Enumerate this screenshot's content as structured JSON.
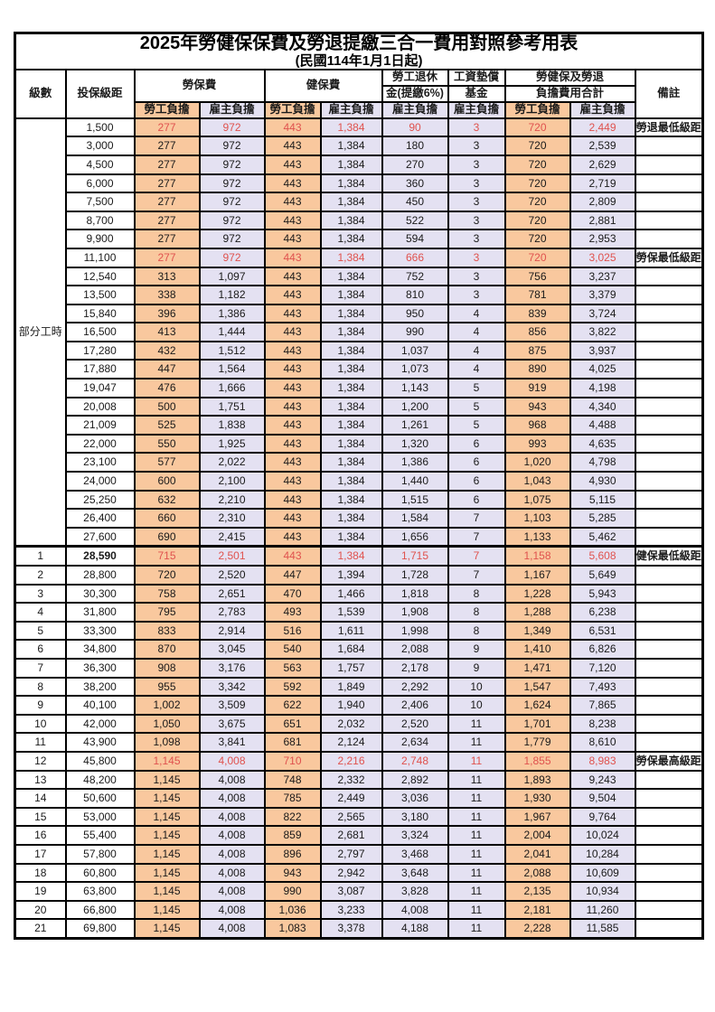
{
  "title": "2025年勞健保保費及勞退提繳三合一費用對照參考用表",
  "subtitle": "(民國114年1月1日起)",
  "header": {
    "level": "級數",
    "bracket": "投保級距",
    "labor_insurance": "勞保費",
    "health_insurance": "健保費",
    "pension_line1": "勞工退休",
    "pension_line2": "金(提繳6%)",
    "wage_fund_line1": "工資墊償",
    "wage_fund_line2": "基金",
    "total_line1": "勞健保及勞退",
    "total_line2": "負擔費用合計",
    "remark": "備註",
    "employee_label": "勞工負擔",
    "employer_label": "雇主負擔"
  },
  "colors": {
    "employee_column_bg": "#F9C89E",
    "employer_column_bg": "#E4E1F2",
    "highlight_red": "#E0524E",
    "border": "#000000"
  },
  "part_time_label": "部分工時",
  "part_time_rows": 23,
  "rows": [
    {
      "level": "",
      "bracket": "1,500",
      "labor_emp": "277",
      "labor_er": "972",
      "health_emp": "443",
      "health_er": "1,384",
      "pension_er": "90",
      "wagefund_er": "3",
      "total_emp": "720",
      "total_er": "2,449",
      "remark": "勞退最低級距",
      "hl": true
    },
    {
      "level": "",
      "bracket": "3,000",
      "labor_emp": "277",
      "labor_er": "972",
      "health_emp": "443",
      "health_er": "1,384",
      "pension_er": "180",
      "wagefund_er": "3",
      "total_emp": "720",
      "total_er": "2,539",
      "remark": ""
    },
    {
      "level": "",
      "bracket": "4,500",
      "labor_emp": "277",
      "labor_er": "972",
      "health_emp": "443",
      "health_er": "1,384",
      "pension_er": "270",
      "wagefund_er": "3",
      "total_emp": "720",
      "total_er": "2,629",
      "remark": ""
    },
    {
      "level": "",
      "bracket": "6,000",
      "labor_emp": "277",
      "labor_er": "972",
      "health_emp": "443",
      "health_er": "1,384",
      "pension_er": "360",
      "wagefund_er": "3",
      "total_emp": "720",
      "total_er": "2,719",
      "remark": ""
    },
    {
      "level": "",
      "bracket": "7,500",
      "labor_emp": "277",
      "labor_er": "972",
      "health_emp": "443",
      "health_er": "1,384",
      "pension_er": "450",
      "wagefund_er": "3",
      "total_emp": "720",
      "total_er": "2,809",
      "remark": ""
    },
    {
      "level": "",
      "bracket": "8,700",
      "labor_emp": "277",
      "labor_er": "972",
      "health_emp": "443",
      "health_er": "1,384",
      "pension_er": "522",
      "wagefund_er": "3",
      "total_emp": "720",
      "total_er": "2,881",
      "remark": ""
    },
    {
      "level": "",
      "bracket": "9,900",
      "labor_emp": "277",
      "labor_er": "972",
      "health_emp": "443",
      "health_er": "1,384",
      "pension_er": "594",
      "wagefund_er": "3",
      "total_emp": "720",
      "total_er": "2,953",
      "remark": ""
    },
    {
      "level": "",
      "bracket": "11,100",
      "labor_emp": "277",
      "labor_er": "972",
      "health_emp": "443",
      "health_er": "1,384",
      "pension_er": "666",
      "wagefund_er": "3",
      "total_emp": "720",
      "total_er": "3,025",
      "remark": "勞保最低級距",
      "hl": true
    },
    {
      "level": "",
      "bracket": "12,540",
      "labor_emp": "313",
      "labor_er": "1,097",
      "health_emp": "443",
      "health_er": "1,384",
      "pension_er": "752",
      "wagefund_er": "3",
      "total_emp": "756",
      "total_er": "3,237",
      "remark": ""
    },
    {
      "level": "",
      "bracket": "13,500",
      "labor_emp": "338",
      "labor_er": "1,182",
      "health_emp": "443",
      "health_er": "1,384",
      "pension_er": "810",
      "wagefund_er": "3",
      "total_emp": "781",
      "total_er": "3,379",
      "remark": ""
    },
    {
      "level": "",
      "bracket": "15,840",
      "labor_emp": "396",
      "labor_er": "1,386",
      "health_emp": "443",
      "health_er": "1,384",
      "pension_er": "950",
      "wagefund_er": "4",
      "total_emp": "839",
      "total_er": "3,724",
      "remark": ""
    },
    {
      "level": "",
      "bracket": "16,500",
      "labor_emp": "413",
      "labor_er": "1,444",
      "health_emp": "443",
      "health_er": "1,384",
      "pension_er": "990",
      "wagefund_er": "4",
      "total_emp": "856",
      "total_er": "3,822",
      "remark": ""
    },
    {
      "level": "",
      "bracket": "17,280",
      "labor_emp": "432",
      "labor_er": "1,512",
      "health_emp": "443",
      "health_er": "1,384",
      "pension_er": "1,037",
      "wagefund_er": "4",
      "total_emp": "875",
      "total_er": "3,937",
      "remark": ""
    },
    {
      "level": "",
      "bracket": "17,880",
      "labor_emp": "447",
      "labor_er": "1,564",
      "health_emp": "443",
      "health_er": "1,384",
      "pension_er": "1,073",
      "wagefund_er": "4",
      "total_emp": "890",
      "total_er": "4,025",
      "remark": ""
    },
    {
      "level": "",
      "bracket": "19,047",
      "labor_emp": "476",
      "labor_er": "1,666",
      "health_emp": "443",
      "health_er": "1,384",
      "pension_er": "1,143",
      "wagefund_er": "5",
      "total_emp": "919",
      "total_er": "4,198",
      "remark": ""
    },
    {
      "level": "",
      "bracket": "20,008",
      "labor_emp": "500",
      "labor_er": "1,751",
      "health_emp": "443",
      "health_er": "1,384",
      "pension_er": "1,200",
      "wagefund_er": "5",
      "total_emp": "943",
      "total_er": "4,340",
      "remark": ""
    },
    {
      "level": "",
      "bracket": "21,009",
      "labor_emp": "525",
      "labor_er": "1,838",
      "health_emp": "443",
      "health_er": "1,384",
      "pension_er": "1,261",
      "wagefund_er": "5",
      "total_emp": "968",
      "total_er": "4,488",
      "remark": ""
    },
    {
      "level": "",
      "bracket": "22,000",
      "labor_emp": "550",
      "labor_er": "1,925",
      "health_emp": "443",
      "health_er": "1,384",
      "pension_er": "1,320",
      "wagefund_er": "6",
      "total_emp": "993",
      "total_er": "4,635",
      "remark": ""
    },
    {
      "level": "",
      "bracket": "23,100",
      "labor_emp": "577",
      "labor_er": "2,022",
      "health_emp": "443",
      "health_er": "1,384",
      "pension_er": "1,386",
      "wagefund_er": "6",
      "total_emp": "1,020",
      "total_er": "4,798",
      "remark": ""
    },
    {
      "level": "",
      "bracket": "24,000",
      "labor_emp": "600",
      "labor_er": "2,100",
      "health_emp": "443",
      "health_er": "1,384",
      "pension_er": "1,440",
      "wagefund_er": "6",
      "total_emp": "1,043",
      "total_er": "4,930",
      "remark": ""
    },
    {
      "level": "",
      "bracket": "25,250",
      "labor_emp": "632",
      "labor_er": "2,210",
      "health_emp": "443",
      "health_er": "1,384",
      "pension_er": "1,515",
      "wagefund_er": "6",
      "total_emp": "1,075",
      "total_er": "5,115",
      "remark": ""
    },
    {
      "level": "",
      "bracket": "26,400",
      "labor_emp": "660",
      "labor_er": "2,310",
      "health_emp": "443",
      "health_er": "1,384",
      "pension_er": "1,584",
      "wagefund_er": "7",
      "total_emp": "1,103",
      "total_er": "5,285",
      "remark": ""
    },
    {
      "level": "",
      "bracket": "27,600",
      "labor_emp": "690",
      "labor_er": "2,415",
      "health_emp": "443",
      "health_er": "1,384",
      "pension_er": "1,656",
      "wagefund_er": "7",
      "total_emp": "1,133",
      "total_er": "5,462",
      "remark": ""
    },
    {
      "level": "1",
      "bracket": "28,590",
      "labor_emp": "715",
      "labor_er": "2,501",
      "health_emp": "443",
      "health_er": "1,384",
      "pension_er": "1,715",
      "wagefund_er": "7",
      "total_emp": "1,158",
      "total_er": "5,608",
      "remark": "健保最低級距",
      "hl": true,
      "emph": true,
      "sect": true
    },
    {
      "level": "2",
      "bracket": "28,800",
      "labor_emp": "720",
      "labor_er": "2,520",
      "health_emp": "447",
      "health_er": "1,394",
      "pension_er": "1,728",
      "wagefund_er": "7",
      "total_emp": "1,167",
      "total_er": "5,649",
      "remark": ""
    },
    {
      "level": "3",
      "bracket": "30,300",
      "labor_emp": "758",
      "labor_er": "2,651",
      "health_emp": "470",
      "health_er": "1,466",
      "pension_er": "1,818",
      "wagefund_er": "8",
      "total_emp": "1,228",
      "total_er": "5,943",
      "remark": ""
    },
    {
      "level": "4",
      "bracket": "31,800",
      "labor_emp": "795",
      "labor_er": "2,783",
      "health_emp": "493",
      "health_er": "1,539",
      "pension_er": "1,908",
      "wagefund_er": "8",
      "total_emp": "1,288",
      "total_er": "6,238",
      "remark": ""
    },
    {
      "level": "5",
      "bracket": "33,300",
      "labor_emp": "833",
      "labor_er": "2,914",
      "health_emp": "516",
      "health_er": "1,611",
      "pension_er": "1,998",
      "wagefund_er": "8",
      "total_emp": "1,349",
      "total_er": "6,531",
      "remark": ""
    },
    {
      "level": "6",
      "bracket": "34,800",
      "labor_emp": "870",
      "labor_er": "3,045",
      "health_emp": "540",
      "health_er": "1,684",
      "pension_er": "2,088",
      "wagefund_er": "9",
      "total_emp": "1,410",
      "total_er": "6,826",
      "remark": ""
    },
    {
      "level": "7",
      "bracket": "36,300",
      "labor_emp": "908",
      "labor_er": "3,176",
      "health_emp": "563",
      "health_er": "1,757",
      "pension_er": "2,178",
      "wagefund_er": "9",
      "total_emp": "1,471",
      "total_er": "7,120",
      "remark": ""
    },
    {
      "level": "8",
      "bracket": "38,200",
      "labor_emp": "955",
      "labor_er": "3,342",
      "health_emp": "592",
      "health_er": "1,849",
      "pension_er": "2,292",
      "wagefund_er": "10",
      "total_emp": "1,547",
      "total_er": "7,493",
      "remark": ""
    },
    {
      "level": "9",
      "bracket": "40,100",
      "labor_emp": "1,002",
      "labor_er": "3,509",
      "health_emp": "622",
      "health_er": "1,940",
      "pension_er": "2,406",
      "wagefund_er": "10",
      "total_emp": "1,624",
      "total_er": "7,865",
      "remark": ""
    },
    {
      "level": "10",
      "bracket": "42,000",
      "labor_emp": "1,050",
      "labor_er": "3,675",
      "health_emp": "651",
      "health_er": "2,032",
      "pension_er": "2,520",
      "wagefund_er": "11",
      "total_emp": "1,701",
      "total_er": "8,238",
      "remark": ""
    },
    {
      "level": "11",
      "bracket": "43,900",
      "labor_emp": "1,098",
      "labor_er": "3,841",
      "health_emp": "681",
      "health_er": "2,124",
      "pension_er": "2,634",
      "wagefund_er": "11",
      "total_emp": "1,779",
      "total_er": "8,610",
      "remark": ""
    },
    {
      "level": "12",
      "bracket": "45,800",
      "labor_emp": "1,145",
      "labor_er": "4,008",
      "health_emp": "710",
      "health_er": "2,216",
      "pension_er": "2,748",
      "wagefund_er": "11",
      "total_emp": "1,855",
      "total_er": "8,983",
      "remark": "勞保最高級距",
      "hl": true
    },
    {
      "level": "13",
      "bracket": "48,200",
      "labor_emp": "1,145",
      "labor_er": "4,008",
      "health_emp": "748",
      "health_er": "2,332",
      "pension_er": "2,892",
      "wagefund_er": "11",
      "total_emp": "1,893",
      "total_er": "9,243",
      "remark": ""
    },
    {
      "level": "14",
      "bracket": "50,600",
      "labor_emp": "1,145",
      "labor_er": "4,008",
      "health_emp": "785",
      "health_er": "2,449",
      "pension_er": "3,036",
      "wagefund_er": "11",
      "total_emp": "1,930",
      "total_er": "9,504",
      "remark": ""
    },
    {
      "level": "15",
      "bracket": "53,000",
      "labor_emp": "1,145",
      "labor_er": "4,008",
      "health_emp": "822",
      "health_er": "2,565",
      "pension_er": "3,180",
      "wagefund_er": "11",
      "total_emp": "1,967",
      "total_er": "9,764",
      "remark": ""
    },
    {
      "level": "16",
      "bracket": "55,400",
      "labor_emp": "1,145",
      "labor_er": "4,008",
      "health_emp": "859",
      "health_er": "2,681",
      "pension_er": "3,324",
      "wagefund_er": "11",
      "total_emp": "2,004",
      "total_er": "10,024",
      "remark": ""
    },
    {
      "level": "17",
      "bracket": "57,800",
      "labor_emp": "1,145",
      "labor_er": "4,008",
      "health_emp": "896",
      "health_er": "2,797",
      "pension_er": "3,468",
      "wagefund_er": "11",
      "total_emp": "2,041",
      "total_er": "10,284",
      "remark": ""
    },
    {
      "level": "18",
      "bracket": "60,800",
      "labor_emp": "1,145",
      "labor_er": "4,008",
      "health_emp": "943",
      "health_er": "2,942",
      "pension_er": "3,648",
      "wagefund_er": "11",
      "total_emp": "2,088",
      "total_er": "10,609",
      "remark": ""
    },
    {
      "level": "19",
      "bracket": "63,800",
      "labor_emp": "1,145",
      "labor_er": "4,008",
      "health_emp": "990",
      "health_er": "3,087",
      "pension_er": "3,828",
      "wagefund_er": "11",
      "total_emp": "2,135",
      "total_er": "10,934",
      "remark": ""
    },
    {
      "level": "20",
      "bracket": "66,800",
      "labor_emp": "1,145",
      "labor_er": "4,008",
      "health_emp": "1,036",
      "health_er": "3,233",
      "pension_er": "4,008",
      "wagefund_er": "11",
      "total_emp": "2,181",
      "total_er": "11,260",
      "remark": ""
    },
    {
      "level": "21",
      "bracket": "69,800",
      "labor_emp": "1,145",
      "labor_er": "4,008",
      "health_emp": "1,083",
      "health_er": "3,378",
      "pension_er": "4,188",
      "wagefund_er": "11",
      "total_emp": "2,228",
      "total_er": "11,585",
      "remark": ""
    }
  ]
}
